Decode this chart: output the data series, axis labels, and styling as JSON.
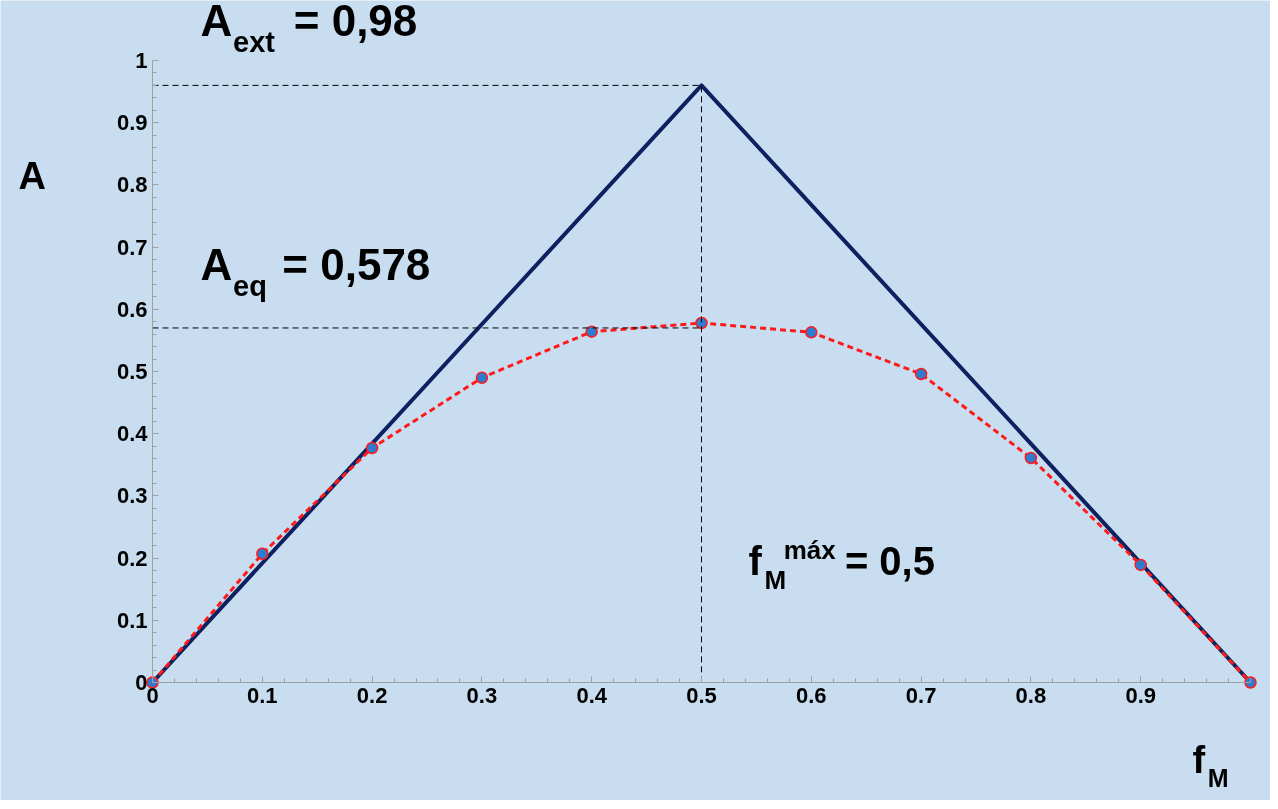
{
  "chart_data": {
    "type": "line",
    "xlabel": "f$_{M}$",
    "ylabel": "A",
    "xlim": [
      0,
      1
    ],
    "ylim": [
      0,
      1
    ],
    "xticks": [
      0,
      0.1,
      0.2,
      0.3,
      0.4,
      0.5,
      0.6,
      0.7,
      0.8,
      0.9
    ],
    "yticks": [
      0,
      0.1,
      0.2,
      0.3,
      0.4,
      0.5,
      0.6,
      0.7,
      0.8,
      0.9,
      1
    ],
    "grid": false,
    "series": [
      {
        "color": "#0d2160",
        "x": [
          0,
          0.5,
          1
        ],
        "values": [
          0,
          0.96,
          0
        ],
        "line_style": "solid",
        "marker": "none"
      },
      {
        "color": "#ff1a1a",
        "x": [
          0,
          0.1,
          0.2,
          0.3,
          0.4,
          0.5,
          0.6,
          0.7,
          0.8,
          0.9,
          1
        ],
        "values": [
          0,
          0.207,
          0.377,
          0.49,
          0.564,
          0.578,
          0.563,
          0.496,
          0.361,
          0.189,
          0
        ],
        "line_style": "dashed",
        "marker": "circle"
      },
      {
        "color": "#000000",
        "x": [
          0,
          0.5,
          0.5
        ],
        "values": [
          0.96,
          0.96,
          0
        ],
        "line_style": "dashed",
        "marker": "none"
      },
      {
        "color": "#000000",
        "x": [
          0,
          0.5
        ],
        "values": [
          0.57,
          0.57
        ],
        "line_style": "dashed",
        "marker": "none"
      }
    ],
    "annotations": [
      "A$_{ext}$ = 0,98",
      "A$_{eq}$ = 0,578",
      "f$_{M}$$^{máx}$ = 0,5"
    ]
  }
}
